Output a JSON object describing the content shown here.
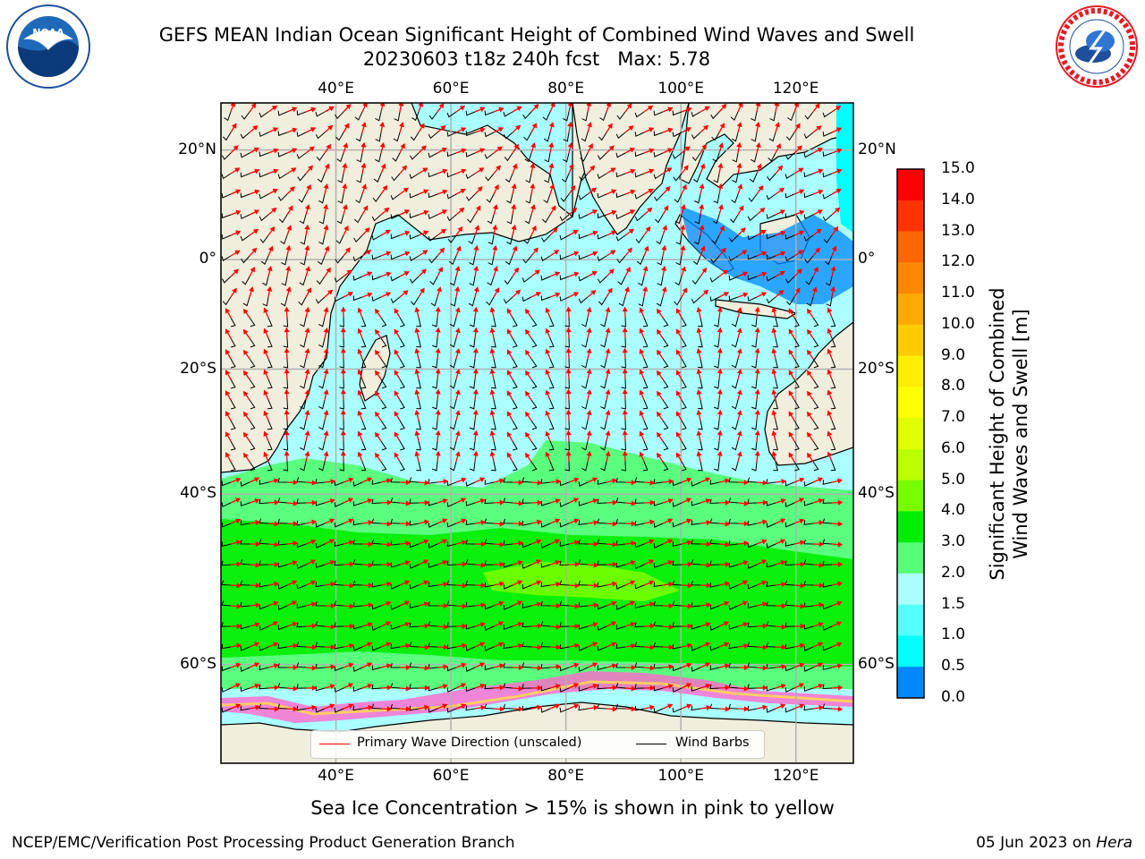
{
  "title": {
    "line1": "GEFS MEAN Indian Ocean Significant Height of Combined Wind Waves and Swell",
    "line2": "20230603 t18z 240h fcst   Max: 5.78"
  },
  "logos": {
    "left": "noaa-logo",
    "right": "national-weather-service-logo"
  },
  "map": {
    "region": "Indian Ocean",
    "lon_ticks_top": [
      "40°E",
      "60°E",
      "80°E",
      "100°E",
      "120°E"
    ],
    "lon_ticks_bottom": [
      "40°E",
      "60°E",
      "80°E",
      "100°E",
      "120°E"
    ],
    "lat_ticks_left": [
      "20°N",
      "0°",
      "20°S",
      "40°S",
      "60°S"
    ],
    "lat_ticks_right": [
      "20°N",
      "0°",
      "20°S",
      "40°S",
      "60°S"
    ],
    "lon_values": [
      40,
      60,
      80,
      100,
      120
    ],
    "lat_values": [
      20,
      0,
      -20,
      -40,
      -60
    ],
    "lon_range": [
      20,
      130
    ],
    "lat_range": [
      -68,
      28
    ],
    "max_wave_height_m": 5.78,
    "colors": {
      "land": "#f0eedc",
      "ocean_low": "#aaffff",
      "ice": "#ffffff"
    }
  },
  "legend": {
    "wave_direction_label": "Primary Wave Direction (unscaled)",
    "wave_direction_color": "#ff0000",
    "wind_barbs_label": "Wind Barbs",
    "wind_barbs_color": "#000000"
  },
  "colorbar": {
    "label_line1": "Significant Height of Combined",
    "label_line2": "Wind Waves and Swell [m]",
    "ticks": [
      "15.0",
      "14.0",
      "13.0",
      "12.0",
      "11.0",
      "10.0",
      "9.0",
      "8.0",
      "7.0",
      "6.0",
      "5.0",
      "4.0",
      "3.0",
      "2.0",
      "1.5",
      "1.0",
      "0.5",
      "0.0"
    ],
    "colors_top_to_bottom": [
      "#ff0000",
      "#ff3300",
      "#ff6600",
      "#ff8800",
      "#ffaa00",
      "#ffcc00",
      "#ffee00",
      "#ffff00",
      "#e0ff00",
      "#bbff00",
      "#77ff00",
      "#00ee00",
      "#55ff77",
      "#aaffff",
      "#55ffff",
      "#00ffff",
      "#0088ff",
      "#0000ff"
    ]
  },
  "footer": {
    "caption": "Sea Ice Concentration > 15% is shown in pink to yellow",
    "left": "NCEP/EMC/Verification Post Processing Product Generation Branch",
    "right_prefix": "05 Jun 2023 on ",
    "right_machine": "Hera"
  }
}
